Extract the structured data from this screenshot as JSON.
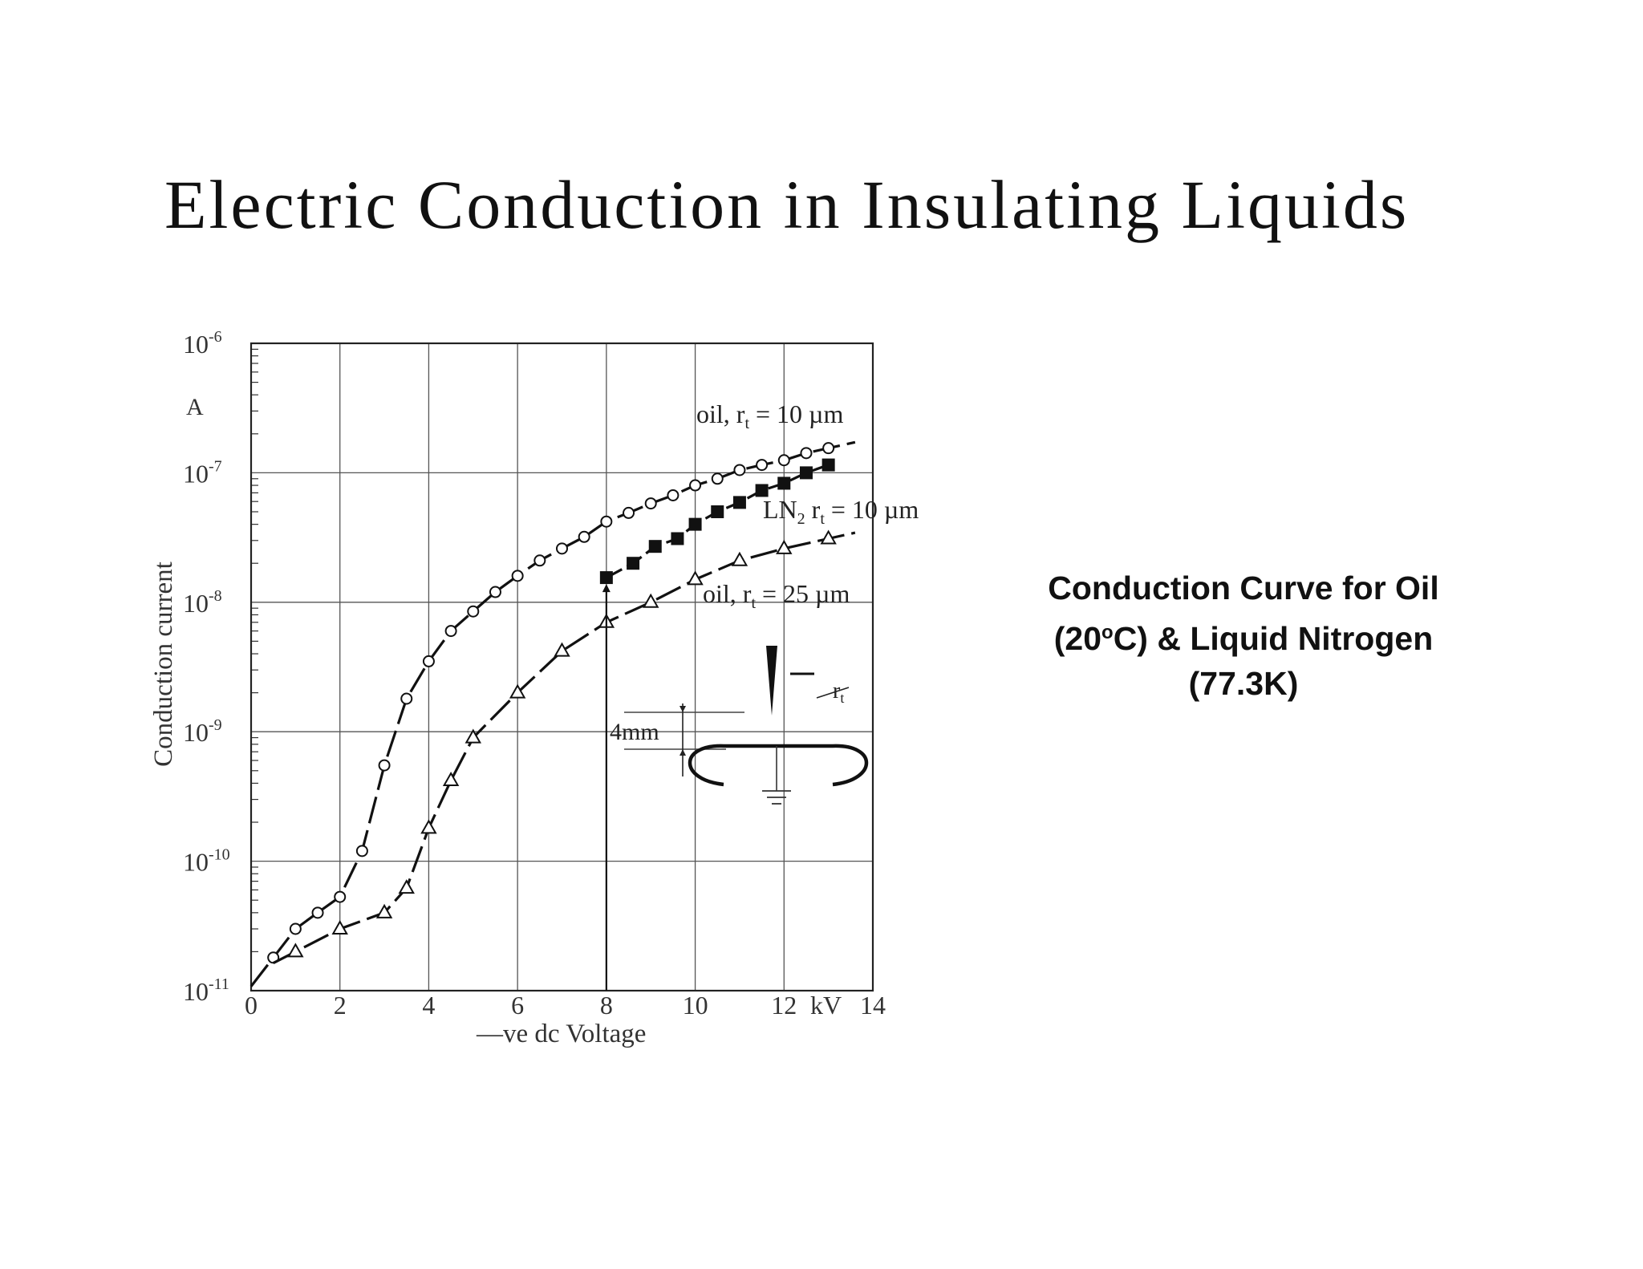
{
  "title": "Electric Conduction in Insulating Liquids",
  "caption": {
    "line1": "Conduction Curve for Oil",
    "line2_pre": "(20",
    "line2_deg": "o",
    "line2_post": "C) & Liquid Nitrogen",
    "line3": "(77.3K)"
  },
  "chart_data": {
    "type": "scatter",
    "ylabel": "Conduction current",
    "yunit": "A",
    "xlabel": "—ve dc Voltage",
    "xunit": "kV",
    "xlim": [
      0,
      14
    ],
    "ylim": [
      1e-11,
      1e-06
    ],
    "yscale": "log",
    "grid": true,
    "x_ticks": [
      "0",
      "2",
      "4",
      "6",
      "8",
      "10",
      "12",
      "14"
    ],
    "y_ticks": [
      {
        "base": "10",
        "exp": "-11"
      },
      {
        "base": "10",
        "exp": "-10"
      },
      {
        "base": "10",
        "exp": "-9"
      },
      {
        "base": "10",
        "exp": "-8"
      },
      {
        "base": "10",
        "exp": "-7"
      },
      {
        "base": "10",
        "exp": "-6"
      }
    ],
    "series": [
      {
        "name": "oil, r = 10 µm",
        "label_pre": "oil, r",
        "label_sub": "t",
        "label_post": " = 10 µm",
        "marker": "circle",
        "x": [
          0.5,
          1.0,
          1.5,
          2.0,
          2.5,
          3.0,
          3.5,
          4.0,
          4.5,
          5.0,
          5.5,
          6.0,
          6.5,
          7.0,
          7.5,
          8.0,
          8.5,
          9.0,
          9.5,
          10.0,
          10.5,
          11.0,
          11.5,
          12.0,
          12.5,
          13.0
        ],
        "y": [
          1.8e-11,
          3e-11,
          4e-11,
          5.3e-11,
          1.2e-10,
          5.5e-10,
          1.8e-09,
          3.5e-09,
          6e-09,
          8.5e-09,
          1.2e-08,
          1.6e-08,
          2.1e-08,
          2.6e-08,
          3.2e-08,
          4.2e-08,
          4.9e-08,
          5.8e-08,
          6.7e-08,
          8e-08,
          9e-08,
          1.05e-07,
          1.15e-07,
          1.25e-07,
          1.42e-07,
          1.55e-07
        ]
      },
      {
        "name": "LN2 r = 10 µm",
        "label_pre": "LN",
        "label_sub2": "2",
        "label_mid": " r",
        "label_sub": "t",
        "label_post": " = 10 µm",
        "marker": "square",
        "x": [
          8.0,
          8.6,
          9.1,
          9.6,
          10.0,
          10.5,
          11.0,
          11.5,
          12.0,
          12.5,
          13.0
        ],
        "y": [
          1.55e-08,
          2e-08,
          2.7e-08,
          3.1e-08,
          4e-08,
          5e-08,
          5.9e-08,
          7.3e-08,
          8.3e-08,
          1e-07,
          1.15e-07
        ]
      },
      {
        "name": "oil, r = 25 µm",
        "label_pre": "oil, r",
        "label_sub": "t",
        "label_post": " = 25 µm",
        "marker": "triangle",
        "x": [
          1.0,
          2.0,
          3.0,
          3.5,
          4.0,
          4.5,
          5.0,
          6.0,
          7.0,
          8.0,
          9.0,
          10.0,
          11.0,
          12.0,
          13.0
        ],
        "y": [
          2e-11,
          3e-11,
          4e-11,
          6.2e-11,
          1.8e-10,
          4.2e-10,
          9e-10,
          2e-09,
          4.2e-09,
          7e-09,
          1e-08,
          1.5e-08,
          2.1e-08,
          2.6e-08,
          3.1e-08
        ]
      }
    ],
    "inset": {
      "gap_label": "4mm",
      "radius_label": "r",
      "radius_label_sub": "t"
    }
  }
}
